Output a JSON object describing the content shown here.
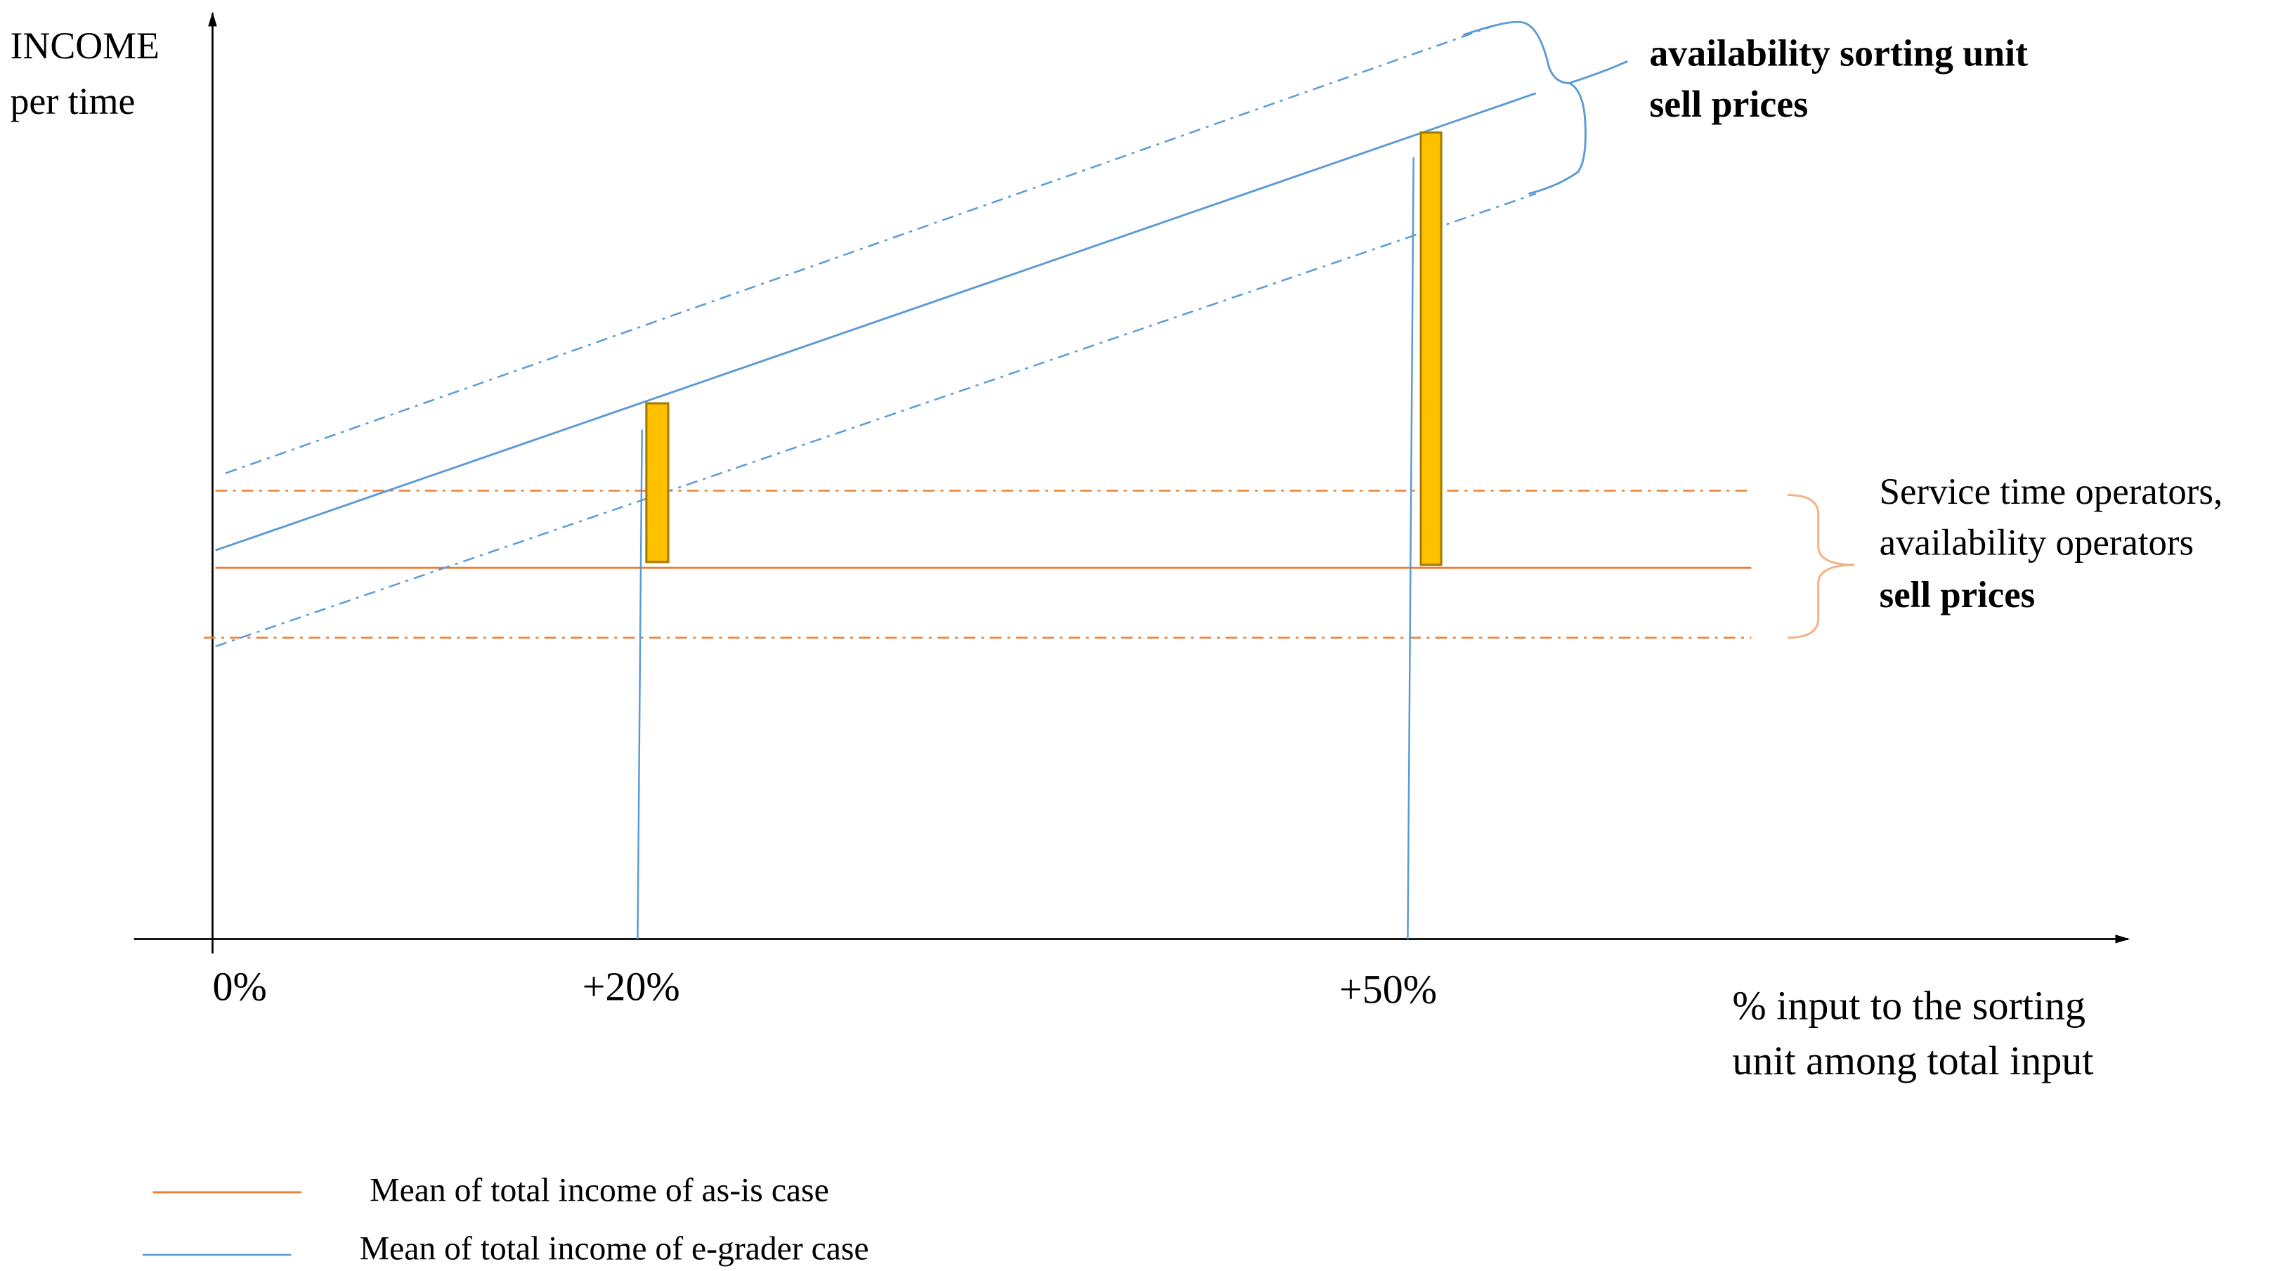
{
  "axes": {
    "y_label": [
      "INCOME",
      "per time"
    ],
    "x_ticks": [
      "0%",
      "+20%",
      "+50%"
    ],
    "x_label": [
      "% input to the sorting",
      "unit among total input"
    ]
  },
  "annotations": {
    "sorting_unit": [
      "availability sorting unit",
      "sell prices"
    ],
    "operators": [
      "Service time operators,",
      "availability operators",
      "sell prices"
    ]
  },
  "legend": [
    "Mean of total income of as-is case",
    "Mean of total income of e-grader case"
  ]
}
